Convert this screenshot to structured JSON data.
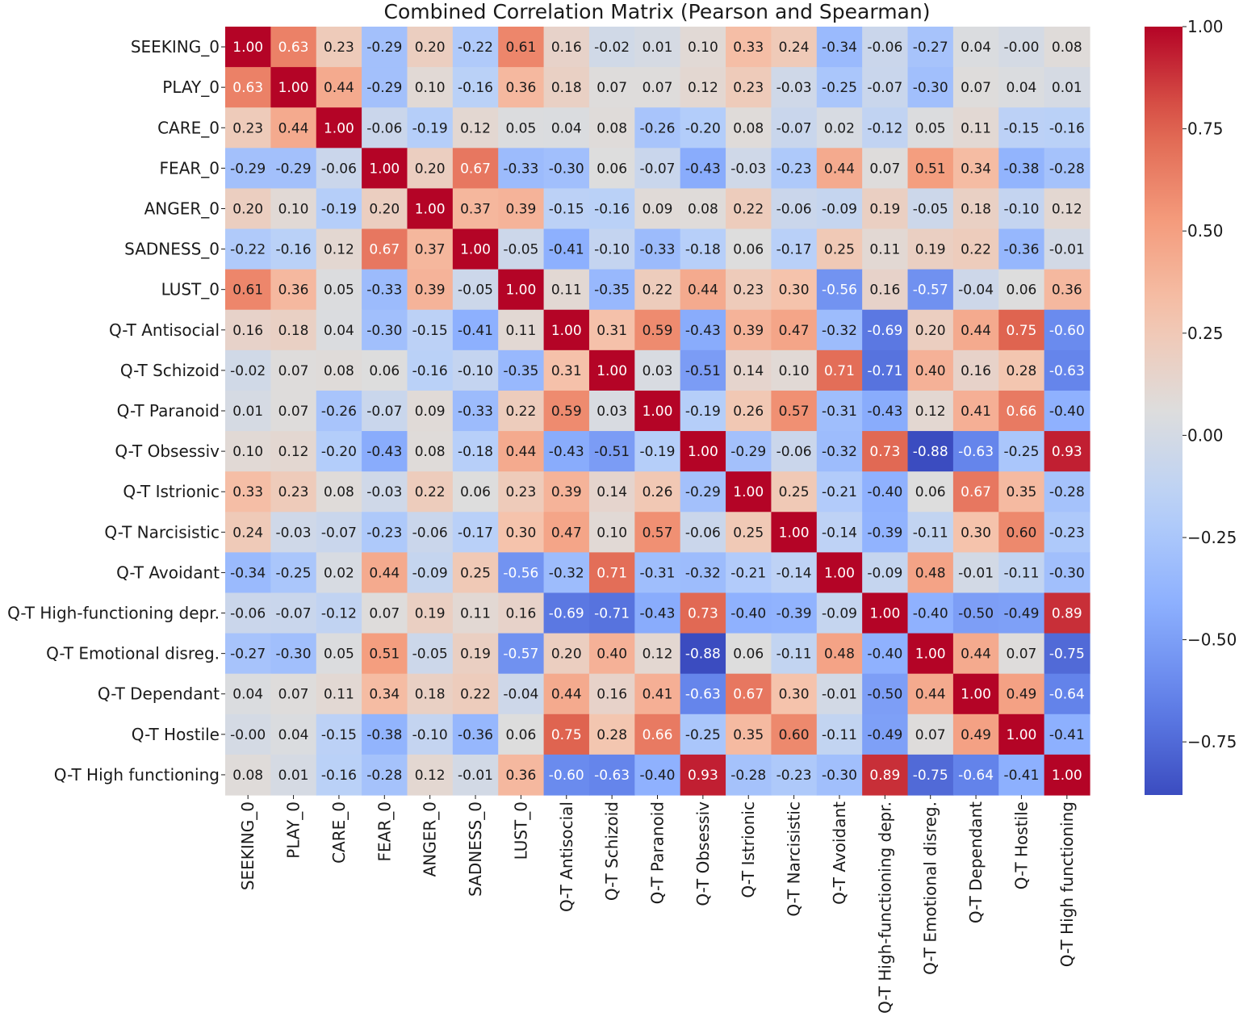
{
  "chart_data": {
    "type": "heatmap",
    "title": "Combined Correlation Matrix (Pearson and Spearman)",
    "row_labels": [
      "SEEKING_0",
      "PLAY_0",
      "CARE_0",
      "FEAR_0",
      "ANGER_0",
      "SADNESS_0",
      "LUST_0",
      "Q-T Antisocial",
      "Q-T Schizoid",
      "Q-T Paranoid",
      "Q-T Obsessiv",
      "Q-T Istrionic",
      "Q-T Narcisistic",
      "Q-T Avoidant",
      "Q-T High-functioning depr.",
      "Q-T Emotional disreg.",
      "Q-T Dependant",
      "Q-T Hostile",
      "Q-T High functioning"
    ],
    "col_labels": [
      "SEEKING_0",
      "PLAY_0",
      "CARE_0",
      "FEAR_0",
      "ANGER_0",
      "SADNESS_0",
      "LUST_0",
      "Q-T Antisocial",
      "Q-T Schizoid",
      "Q-T Paranoid",
      "Q-T Obsessiv",
      "Q-T Istrionic",
      "Q-T Narcisistic",
      "Q-T Avoidant",
      "Q-T High-functioning depr.",
      "Q-T Emotional disreg.",
      "Q-T Dependant",
      "Q-T Hostile",
      "Q-T High functioning"
    ],
    "values": [
      [
        1.0,
        0.63,
        0.23,
        -0.29,
        0.2,
        -0.22,
        0.61,
        0.16,
        -0.02,
        0.01,
        0.1,
        0.33,
        0.24,
        -0.34,
        -0.06,
        -0.27,
        0.04,
        -0.0,
        0.08
      ],
      [
        0.63,
        1.0,
        0.44,
        -0.29,
        0.1,
        -0.16,
        0.36,
        0.18,
        0.07,
        0.07,
        0.12,
        0.23,
        -0.03,
        -0.25,
        -0.07,
        -0.3,
        0.07,
        0.04,
        0.01
      ],
      [
        0.23,
        0.44,
        1.0,
        -0.06,
        -0.19,
        0.12,
        0.05,
        0.04,
        0.08,
        -0.26,
        -0.2,
        0.08,
        -0.07,
        0.02,
        -0.12,
        0.05,
        0.11,
        -0.15,
        -0.16
      ],
      [
        -0.29,
        -0.29,
        -0.06,
        1.0,
        0.2,
        0.67,
        -0.33,
        -0.3,
        0.06,
        -0.07,
        -0.43,
        -0.03,
        -0.23,
        0.44,
        0.07,
        0.51,
        0.34,
        -0.38,
        -0.28
      ],
      [
        0.2,
        0.1,
        -0.19,
        0.2,
        1.0,
        0.37,
        0.39,
        -0.15,
        -0.16,
        0.09,
        0.08,
        0.22,
        -0.06,
        -0.09,
        0.19,
        -0.05,
        0.18,
        -0.1,
        0.12
      ],
      [
        -0.22,
        -0.16,
        0.12,
        0.67,
        0.37,
        1.0,
        -0.05,
        -0.41,
        -0.1,
        -0.33,
        -0.18,
        0.06,
        -0.17,
        0.25,
        0.11,
        0.19,
        0.22,
        -0.36,
        -0.01
      ],
      [
        0.61,
        0.36,
        0.05,
        -0.33,
        0.39,
        -0.05,
        1.0,
        0.11,
        -0.35,
        0.22,
        0.44,
        0.23,
        0.3,
        -0.56,
        0.16,
        -0.57,
        -0.04,
        0.06,
        0.36
      ],
      [
        0.16,
        0.18,
        0.04,
        -0.3,
        -0.15,
        -0.41,
        0.11,
        1.0,
        0.31,
        0.59,
        -0.43,
        0.39,
        0.47,
        -0.32,
        -0.69,
        0.2,
        0.44,
        0.75,
        -0.6
      ],
      [
        -0.02,
        0.07,
        0.08,
        0.06,
        -0.16,
        -0.1,
        -0.35,
        0.31,
        1.0,
        0.03,
        -0.51,
        0.14,
        0.1,
        0.71,
        -0.71,
        0.4,
        0.16,
        0.28,
        -0.63
      ],
      [
        0.01,
        0.07,
        -0.26,
        -0.07,
        0.09,
        -0.33,
        0.22,
        0.59,
        0.03,
        1.0,
        -0.19,
        0.26,
        0.57,
        -0.31,
        -0.43,
        0.12,
        0.41,
        0.66,
        -0.4
      ],
      [
        0.1,
        0.12,
        -0.2,
        -0.43,
        0.08,
        -0.18,
        0.44,
        -0.43,
        -0.51,
        -0.19,
        1.0,
        -0.29,
        -0.06,
        -0.32,
        0.73,
        -0.88,
        -0.63,
        -0.25,
        0.93
      ],
      [
        0.33,
        0.23,
        0.08,
        -0.03,
        0.22,
        0.06,
        0.23,
        0.39,
        0.14,
        0.26,
        -0.29,
        1.0,
        0.25,
        -0.21,
        -0.4,
        0.06,
        0.67,
        0.35,
        -0.28
      ],
      [
        0.24,
        -0.03,
        -0.07,
        -0.23,
        -0.06,
        -0.17,
        0.3,
        0.47,
        0.1,
        0.57,
        -0.06,
        0.25,
        1.0,
        -0.14,
        -0.39,
        -0.11,
        0.3,
        0.6,
        -0.23
      ],
      [
        -0.34,
        -0.25,
        0.02,
        0.44,
        -0.09,
        0.25,
        -0.56,
        -0.32,
        0.71,
        -0.31,
        -0.32,
        -0.21,
        -0.14,
        1.0,
        -0.09,
        0.48,
        -0.01,
        -0.11,
        -0.3
      ],
      [
        -0.06,
        -0.07,
        -0.12,
        0.07,
        0.19,
        0.11,
        0.16,
        -0.69,
        -0.71,
        -0.43,
        0.73,
        -0.4,
        -0.39,
        -0.09,
        1.0,
        -0.4,
        -0.5,
        -0.49,
        0.89
      ],
      [
        -0.27,
        -0.3,
        0.05,
        0.51,
        -0.05,
        0.19,
        -0.57,
        0.2,
        0.4,
        0.12,
        -0.88,
        0.06,
        -0.11,
        0.48,
        -0.4,
        1.0,
        0.44,
        0.07,
        -0.75
      ],
      [
        0.04,
        0.07,
        0.11,
        0.34,
        0.18,
        0.22,
        -0.04,
        0.44,
        0.16,
        0.41,
        -0.63,
        0.67,
        0.3,
        -0.01,
        -0.5,
        0.44,
        1.0,
        0.49,
        -0.64
      ],
      [
        -0.0,
        0.04,
        -0.15,
        -0.38,
        -0.1,
        -0.36,
        0.06,
        0.75,
        0.28,
        0.66,
        -0.25,
        0.35,
        0.6,
        -0.11,
        -0.49,
        0.07,
        0.49,
        1.0,
        -0.41
      ],
      [
        0.08,
        0.01,
        -0.16,
        -0.28,
        0.12,
        -0.01,
        0.36,
        -0.6,
        -0.63,
        -0.4,
        0.93,
        -0.28,
        -0.23,
        -0.3,
        0.89,
        -0.75,
        -0.64,
        -0.41,
        1.0
      ]
    ],
    "colormap": "coolwarm",
    "vmin": -0.88,
    "vmax": 1.0,
    "colorbar_ticks": [
      1.0,
      0.75,
      0.5,
      0.25,
      0.0,
      -0.25,
      -0.5,
      -0.75
    ],
    "colorbar_tick_labels": [
      "1.00",
      "0.75",
      "0.50",
      "0.25",
      "0.00",
      "−0.25",
      "−0.50",
      "−0.75"
    ],
    "xlabel": "",
    "ylabel": ""
  }
}
